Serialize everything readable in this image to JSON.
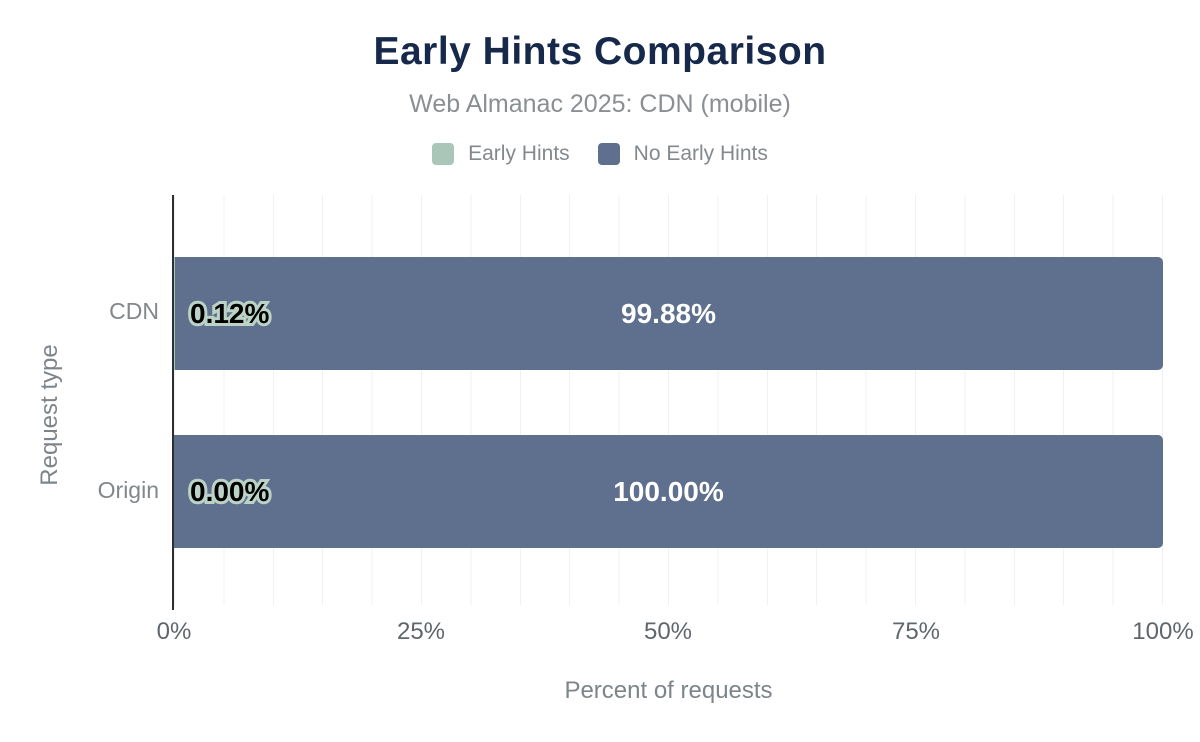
{
  "chart_data": {
    "type": "bar",
    "orientation": "horizontal",
    "stacked": true,
    "title": "Early Hints Comparison",
    "subtitle": "Web Almanac 2025: CDN (mobile)",
    "categories": [
      "CDN",
      "Origin"
    ],
    "series": [
      {
        "name": "Early Hints",
        "color": "#a9c6b9",
        "values": [
          0.12,
          0.0
        ],
        "labels": [
          "0.12%",
          "0.00%"
        ]
      },
      {
        "name": "No Early Hints",
        "color": "#5e708e",
        "values": [
          99.88,
          100.0
        ],
        "labels": [
          "99.88%",
          "100.00%"
        ]
      }
    ],
    "xlabel": "Percent of requests",
    "ylabel": "Request type",
    "xlim": [
      0,
      100
    ],
    "x_ticks": [
      "0%",
      "25%",
      "50%",
      "75%",
      "100%"
    ],
    "grid": "vertical gridlines every 5%",
    "legend_position": "top-center"
  },
  "colors": {
    "title": "#17294a",
    "bar_early_hints": "#a9c6b9",
    "bar_no_early_hints": "#5e708e",
    "value_label_outline": "#bad3c6",
    "value_label_on_bar": "#ffffff"
  }
}
